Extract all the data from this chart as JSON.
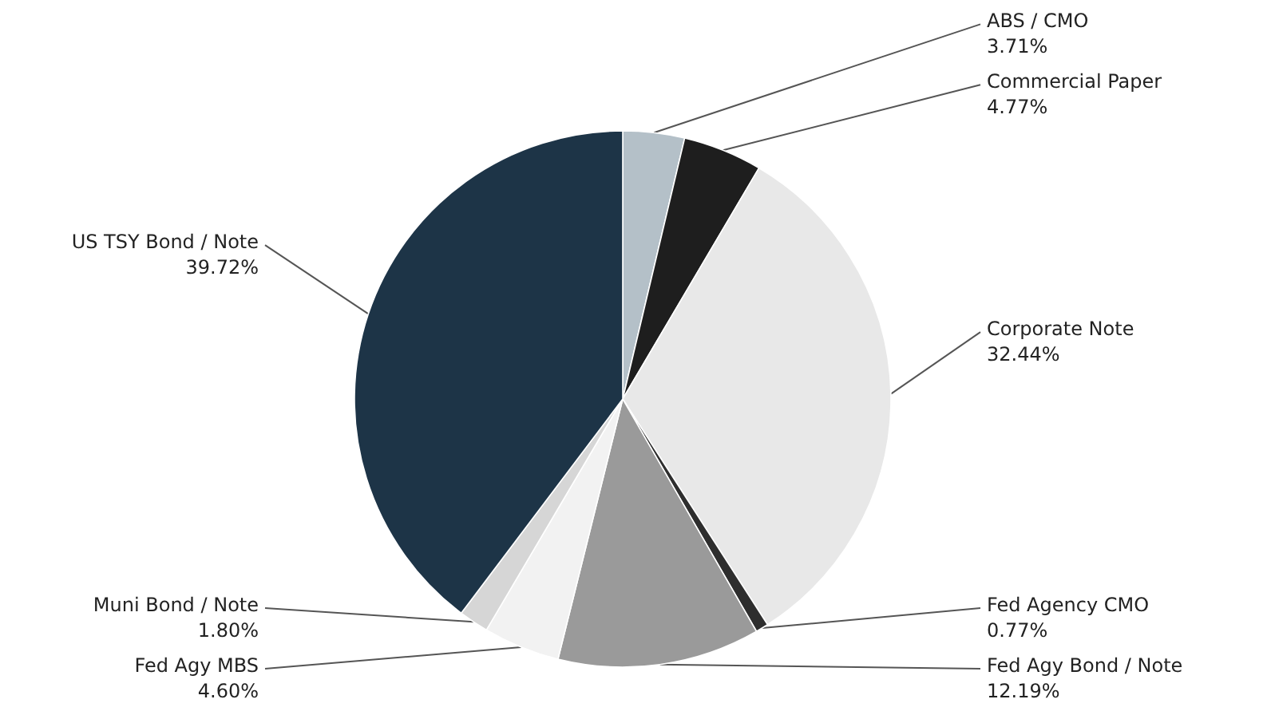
{
  "chart_data": {
    "type": "pie",
    "categories": [
      "ABS / CMO",
      "Commercial Paper",
      "Corporate Note",
      "Fed Agency CMO",
      "Fed Agy Bond / Note",
      "Fed Agy MBS",
      "Muni Bond / Note",
      "US TSY Bond / Note"
    ],
    "values": [
      3.71,
      4.77,
      32.44,
      0.77,
      12.19,
      4.6,
      1.8,
      39.72
    ],
    "value_labels": [
      "3.71%",
      "4.77%",
      "32.44%",
      "0.77%",
      "12.19%",
      "4.60%",
      "1.80%",
      "39.72%"
    ],
    "colors": [
      "#b4c0c8",
      "#1e1e1e",
      "#e8e8e8",
      "#2e2e2e",
      "#9a9a9a",
      "#f2f2f2",
      "#d6d6d6",
      "#1d3447"
    ]
  }
}
